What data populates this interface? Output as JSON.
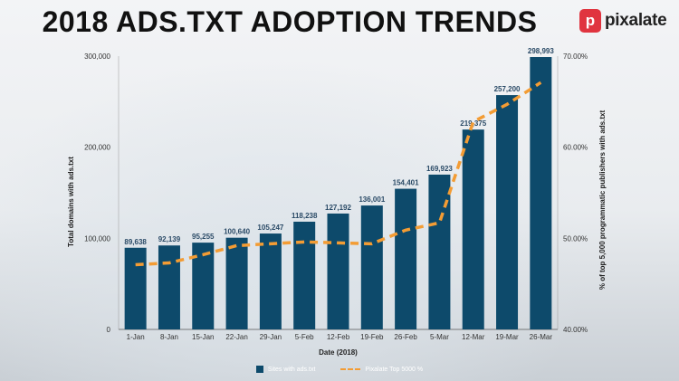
{
  "header": {
    "title": "2018 ADS.TXT ADOPTION TRENDS",
    "logo_mark": "p",
    "logo_text": "pixalate"
  },
  "colors": {
    "bar": "#0d4a6b",
    "line": "#f39c34"
  },
  "chart_data": {
    "type": "bar",
    "xlabel": "Date (2018)",
    "ylabel": "Total domains with ads.txt",
    "y2label": "% of top 5,000 programmatic publishers with ads.txt",
    "categories": [
      "1-Jan",
      "8-Jan",
      "15-Jan",
      "22-Jan",
      "29-Jan",
      "5-Feb",
      "12-Feb",
      "19-Feb",
      "26-Feb",
      "5-Mar",
      "12-Mar",
      "19-Mar",
      "26-Mar"
    ],
    "ylim": [
      0,
      300000
    ],
    "yticks": [
      0,
      100000,
      200000,
      300000
    ],
    "ytick_labels": [
      "0",
      "100,000",
      "200,000",
      "300,000"
    ],
    "y2lim": [
      40,
      70
    ],
    "y2ticks": [
      40,
      50,
      60,
      70
    ],
    "y2tick_labels": [
      "40.00%",
      "50.00%",
      "60.00%",
      "70.00%"
    ],
    "series": [
      {
        "name": "Sites with ads.txt",
        "type": "bar",
        "axis": "left",
        "values": [
          89638,
          92139,
          95255,
          100640,
          105247,
          118238,
          127192,
          136001,
          154401,
          169923,
          219375,
          257200,
          298993
        ],
        "labels": [
          "89,638",
          "92,139",
          "95,255",
          "100,640",
          "105,247",
          "118,238",
          "127,192",
          "136,001",
          "154,401",
          "169,923",
          "219,375",
          "257,200",
          "298,993"
        ]
      },
      {
        "name": "Pixalate Top 5000 %",
        "type": "line",
        "style": "dashed",
        "axis": "right",
        "values": [
          47.1,
          47.3,
          48.2,
          49.2,
          49.4,
          49.6,
          49.5,
          49.4,
          50.9,
          51.7,
          62.8,
          64.7,
          67.1
        ]
      }
    ],
    "legend_position": "bottom",
    "grid": false
  }
}
